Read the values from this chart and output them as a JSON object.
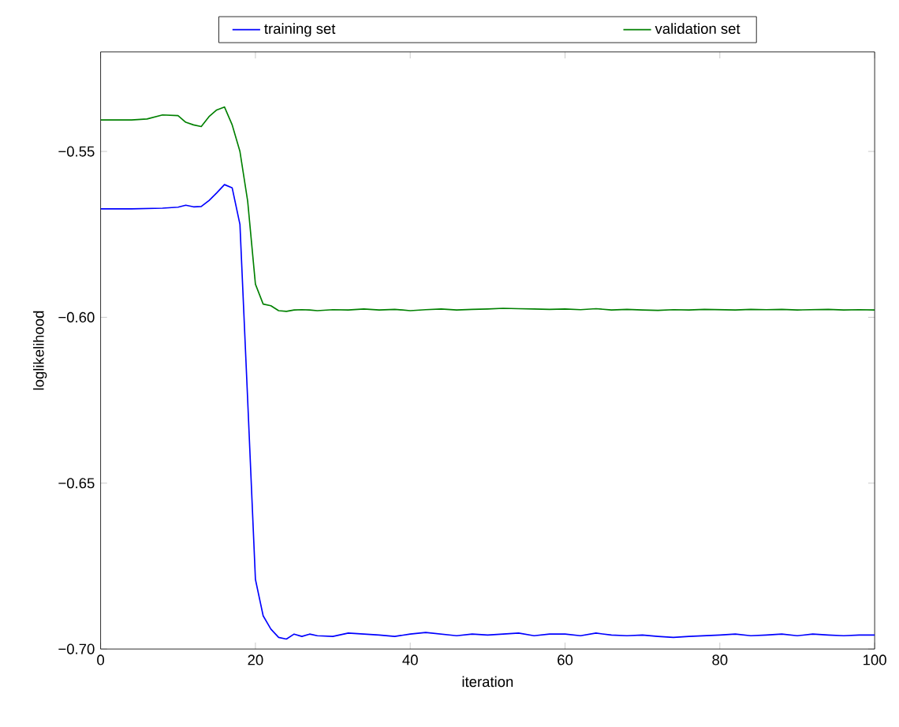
{
  "chart_data": {
    "type": "line",
    "xlabel": "iteration",
    "ylabel": "loglikelihood",
    "xlim": [
      0,
      100
    ],
    "ylim": [
      -0.7,
      -0.52
    ],
    "xticks": [
      0,
      20,
      40,
      60,
      80,
      100
    ],
    "yticks": [
      {
        "value": -0.7,
        "label": "−0.70"
      },
      {
        "value": -0.65,
        "label": "−0.65"
      },
      {
        "value": -0.6,
        "label": "−0.60"
      },
      {
        "value": -0.55,
        "label": "−0.55"
      }
    ],
    "legend": "top",
    "grid": false,
    "marker": "none",
    "line_style": "solid",
    "series": [
      {
        "name": "training set",
        "color": "#0000ff",
        "x": [
          0,
          2,
          4,
          6,
          8,
          10,
          11,
          12,
          13,
          14,
          15,
          16,
          17,
          18,
          19,
          20,
          21,
          22,
          23,
          24,
          25,
          26,
          27,
          28,
          30,
          32,
          34,
          36,
          38,
          40,
          42,
          44,
          46,
          48,
          50,
          52,
          54,
          56,
          58,
          60,
          62,
          64,
          66,
          68,
          70,
          72,
          74,
          76,
          78,
          80,
          82,
          84,
          86,
          88,
          90,
          92,
          94,
          96,
          98,
          100
        ],
        "values": [
          -0.5673,
          -0.5673,
          -0.5673,
          -0.5672,
          -0.5671,
          -0.5668,
          -0.5662,
          -0.5667,
          -0.5666,
          -0.5648,
          -0.5625,
          -0.56,
          -0.561,
          -0.572,
          -0.625,
          -0.679,
          -0.69,
          -0.694,
          -0.6965,
          -0.697,
          -0.6955,
          -0.6962,
          -0.6955,
          -0.696,
          -0.6962,
          -0.6952,
          -0.6955,
          -0.6958,
          -0.6962,
          -0.6955,
          -0.695,
          -0.6955,
          -0.696,
          -0.6955,
          -0.6958,
          -0.6955,
          -0.6952,
          -0.696,
          -0.6955,
          -0.6955,
          -0.696,
          -0.6952,
          -0.6958,
          -0.696,
          -0.6958,
          -0.6962,
          -0.6965,
          -0.6962,
          -0.696,
          -0.6958,
          -0.6955,
          -0.696,
          -0.6958,
          -0.6955,
          -0.696,
          -0.6955,
          -0.6958,
          -0.696,
          -0.6958,
          -0.6958
        ]
      },
      {
        "name": "validation set",
        "color": "#008000",
        "x": [
          0,
          2,
          4,
          6,
          8,
          10,
          11,
          12,
          13,
          14,
          15,
          16,
          17,
          18,
          19,
          20,
          21,
          22,
          23,
          24,
          25,
          26,
          27,
          28,
          30,
          32,
          34,
          36,
          38,
          40,
          42,
          44,
          46,
          48,
          50,
          52,
          54,
          56,
          58,
          60,
          62,
          64,
          66,
          68,
          70,
          72,
          74,
          76,
          78,
          80,
          82,
          84,
          86,
          88,
          90,
          92,
          94,
          96,
          98,
          100
        ],
        "values": [
          -0.5405,
          -0.5405,
          -0.5405,
          -0.5402,
          -0.539,
          -0.5392,
          -0.5412,
          -0.542,
          -0.5425,
          -0.5395,
          -0.5375,
          -0.5366,
          -0.542,
          -0.55,
          -0.565,
          -0.59,
          -0.596,
          -0.5965,
          -0.598,
          -0.5982,
          -0.5978,
          -0.5977,
          -0.5978,
          -0.598,
          -0.5977,
          -0.5978,
          -0.5975,
          -0.5978,
          -0.5976,
          -0.598,
          -0.5977,
          -0.5975,
          -0.5978,
          -0.5976,
          -0.5975,
          -0.5973,
          -0.5974,
          -0.5975,
          -0.5976,
          -0.5975,
          -0.5977,
          -0.5974,
          -0.5978,
          -0.5976,
          -0.5978,
          -0.5979,
          -0.5977,
          -0.5978,
          -0.5976,
          -0.5977,
          -0.5978,
          -0.5976,
          -0.5977,
          -0.5976,
          -0.5978,
          -0.5977,
          -0.5976,
          -0.5978,
          -0.5977,
          -0.5978
        ]
      }
    ]
  }
}
